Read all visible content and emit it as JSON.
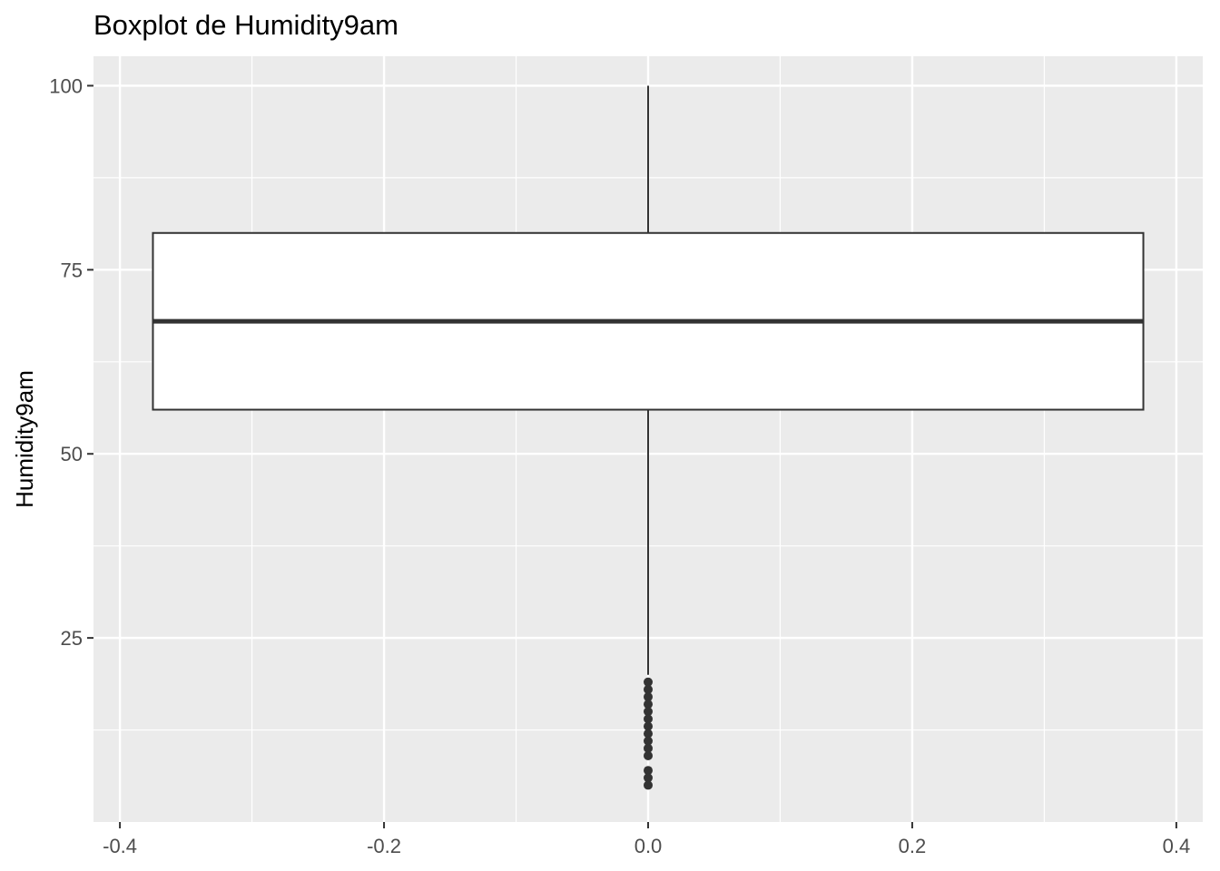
{
  "chart_data": {
    "type": "boxplot",
    "title": "Boxplot de Humidity9am",
    "xlabel": "",
    "ylabel": "Humidity9am",
    "xlim": [
      -0.42,
      0.42
    ],
    "ylim": [
      0,
      104
    ],
    "x_ticks": [
      -0.4,
      -0.2,
      0.0,
      0.2,
      0.4
    ],
    "x_tick_labels": [
      "-0.4",
      "-0.2",
      "0.0",
      "0.2",
      "0.4"
    ],
    "y_ticks": [
      25,
      50,
      75,
      100
    ],
    "y_tick_labels": [
      "25",
      "50",
      "75",
      "100"
    ],
    "grid": true,
    "box": {
      "x_center": 0.0,
      "x_min": -0.375,
      "x_max": 0.375,
      "q1": 56,
      "median": 68,
      "q3": 80,
      "whisker_low": 20,
      "whisker_high": 100
    },
    "outliers": [
      19,
      18,
      17,
      16,
      15,
      14,
      13,
      12,
      11,
      10,
      9,
      7,
      6,
      5
    ],
    "colors": {
      "panel_bg": "#ebebeb",
      "grid_major": "#ffffff",
      "box_fill": "#ffffff",
      "box_line": "#333333",
      "tick_text": "#4d4d4d"
    }
  }
}
